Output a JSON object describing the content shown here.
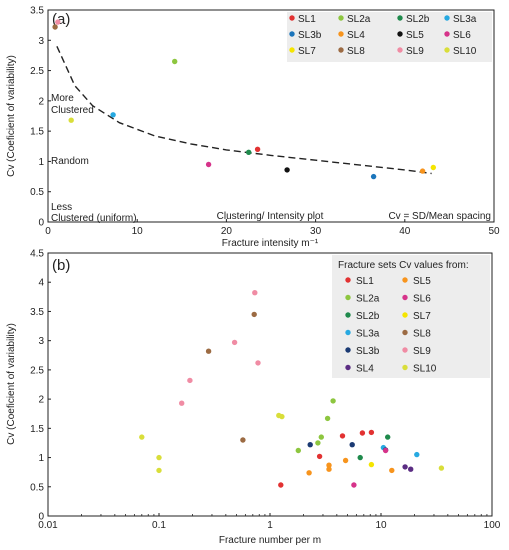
{
  "chart_data": [
    {
      "panel_label": "(a)",
      "type": "scatter",
      "title": "Clustering/ Intensity plot",
      "xlabel": "Fracture intensity m⁻¹",
      "ylabel": "Cv (Coeficient of variability)",
      "xlim": [
        0,
        50
      ],
      "ylim": [
        0,
        3.5
      ],
      "x_ticks": [
        0,
        10,
        20,
        30,
        40,
        50
      ],
      "y_ticks": [
        0,
        0.5,
        1,
        1.5,
        2,
        2.5,
        3,
        3.5
      ],
      "x_tick_labels": [
        "0",
        "10",
        "20",
        "30",
        "40",
        "50"
      ],
      "y_tick_labels": [
        "0",
        "0.5",
        "1",
        "1.5",
        "2",
        "2.5",
        "3",
        "3.5"
      ],
      "grid": false,
      "legend_position": "top-right",
      "annotations": {
        "more_clustered": [
          "More",
          "Clustered"
        ],
        "random": "Random",
        "less_clustered": [
          "Less",
          "Clustered (uniform)"
        ],
        "formula": "Cv = SD/Mean spacing"
      },
      "trend_curve": [
        [
          1,
          2.9
        ],
        [
          3,
          2.25
        ],
        [
          5,
          1.92
        ],
        [
          8,
          1.64
        ],
        [
          12,
          1.42
        ],
        [
          16,
          1.29
        ],
        [
          20,
          1.19
        ],
        [
          25,
          1.1
        ],
        [
          30,
          1.02
        ],
        [
          35,
          0.94
        ],
        [
          40,
          0.86
        ],
        [
          43,
          0.8
        ]
      ],
      "series": [
        {
          "name": "SL1",
          "color": "#e23232",
          "points": [
            [
              23.5,
              1.2
            ]
          ]
        },
        {
          "name": "SL2a",
          "color": "#8dc63f",
          "points": [
            [
              14.2,
              2.65
            ]
          ]
        },
        {
          "name": "SL2b",
          "color": "#1f8a4c",
          "points": [
            [
              22.5,
              1.15
            ]
          ]
        },
        {
          "name": "SL3a",
          "color": "#27a9e1",
          "points": [
            [
              7.3,
              1.77
            ]
          ]
        },
        {
          "name": "SL3b",
          "color": "#1b75bb",
          "points": [
            [
              36.5,
              0.75
            ]
          ]
        },
        {
          "name": "SL4",
          "color": "#f7941d",
          "points": [
            [
              42.0,
              0.84
            ]
          ]
        },
        {
          "name": "SL5",
          "color": "#111111",
          "points": [
            [
              26.8,
              0.86
            ]
          ]
        },
        {
          "name": "SL6",
          "color": "#d6338a",
          "points": [
            [
              18.0,
              0.95
            ]
          ]
        },
        {
          "name": "SL7",
          "color": "#f5e500",
          "points": [
            [
              43.2,
              0.9
            ]
          ]
        },
        {
          "name": "SL8",
          "color": "#9c6b43",
          "points": [
            [
              0.8,
              3.22
            ]
          ]
        },
        {
          "name": "SL9",
          "color": "#f08ca4",
          "points": [
            [
              1.1,
              3.3
            ]
          ]
        },
        {
          "name": "SL10",
          "color": "#d9de3a",
          "points": [
            [
              2.6,
              1.68
            ]
          ]
        }
      ]
    },
    {
      "panel_label": "(b)",
      "type": "scatter",
      "xlabel": "Fracture number per m",
      "ylabel": "Cv (Coeficient of variability)",
      "xscale": "log",
      "xlim": [
        0.01,
        100
      ],
      "ylim": [
        0,
        4.5
      ],
      "x_ticks": [
        0.01,
        0.1,
        1,
        10,
        100
      ],
      "y_ticks": [
        0,
        0.5,
        1,
        1.5,
        2,
        2.5,
        3,
        3.5,
        4,
        4.5
      ],
      "x_tick_labels": [
        "0.01",
        "0.1",
        "1",
        "10",
        "100"
      ],
      "y_tick_labels": [
        "0",
        "0.5",
        "1",
        "1.5",
        "2",
        "2.5",
        "3",
        "3.5",
        "4",
        "4.5"
      ],
      "grid": false,
      "legend_title": "Fracture sets Cv values from:",
      "legend_position": "top-right",
      "series": [
        {
          "name": "SL1",
          "color": "#e23232",
          "points": [
            [
              1.25,
              0.53
            ],
            [
              2.8,
              1.02
            ],
            [
              4.5,
              1.37
            ],
            [
              6.8,
              1.42
            ],
            [
              8.2,
              1.43
            ]
          ]
        },
        {
          "name": "SL2a",
          "color": "#8dc63f",
          "points": [
            [
              1.8,
              1.12
            ],
            [
              2.7,
              1.25
            ],
            [
              2.9,
              1.35
            ],
            [
              3.3,
              1.67
            ],
            [
              3.7,
              1.97
            ]
          ]
        },
        {
          "name": "SL2b",
          "color": "#1f8a4c",
          "points": [
            [
              6.5,
              1.0
            ],
            [
              11.5,
              1.35
            ]
          ]
        },
        {
          "name": "SL3a",
          "color": "#27a9e1",
          "points": [
            [
              10.5,
              1.17
            ],
            [
              21.0,
              1.05
            ]
          ]
        },
        {
          "name": "SL3b",
          "color": "#1b3a73",
          "points": [
            [
              2.3,
              1.22
            ],
            [
              5.5,
              1.22
            ],
            [
              11.0,
              1.13
            ]
          ]
        },
        {
          "name": "SL4",
          "color": "#5b2d83",
          "points": [
            [
              16.5,
              0.84
            ],
            [
              18.5,
              0.8
            ]
          ]
        },
        {
          "name": "SL5",
          "color": "#f7941d",
          "points": [
            [
              2.25,
              0.74
            ],
            [
              3.4,
              0.8
            ],
            [
              3.4,
              0.87
            ],
            [
              4.8,
              0.95
            ],
            [
              12.5,
              0.78
            ]
          ]
        },
        {
          "name": "SL6",
          "color": "#d6338a",
          "points": [
            [
              5.7,
              0.53
            ],
            [
              11.0,
              1.12
            ]
          ]
        },
        {
          "name": "SL7",
          "color": "#f5e500",
          "points": [
            [
              8.2,
              0.88
            ]
          ]
        },
        {
          "name": "SL8",
          "color": "#9c6b43",
          "points": [
            [
              0.28,
              2.82
            ],
            [
              0.57,
              1.3
            ],
            [
              0.72,
              3.45
            ]
          ]
        },
        {
          "name": "SL9",
          "color": "#f08ca4",
          "points": [
            [
              0.16,
              1.93
            ],
            [
              0.19,
              2.32
            ],
            [
              0.48,
              2.97
            ],
            [
              0.73,
              3.82
            ],
            [
              0.78,
              2.62
            ]
          ]
        },
        {
          "name": "SL10",
          "color": "#d9de3a",
          "points": [
            [
              0.07,
              1.35
            ],
            [
              0.1,
              1.0
            ],
            [
              0.1,
              0.78
            ],
            [
              1.2,
              1.72
            ],
            [
              1.28,
              1.7
            ],
            [
              35.0,
              0.82
            ]
          ]
        }
      ]
    }
  ]
}
